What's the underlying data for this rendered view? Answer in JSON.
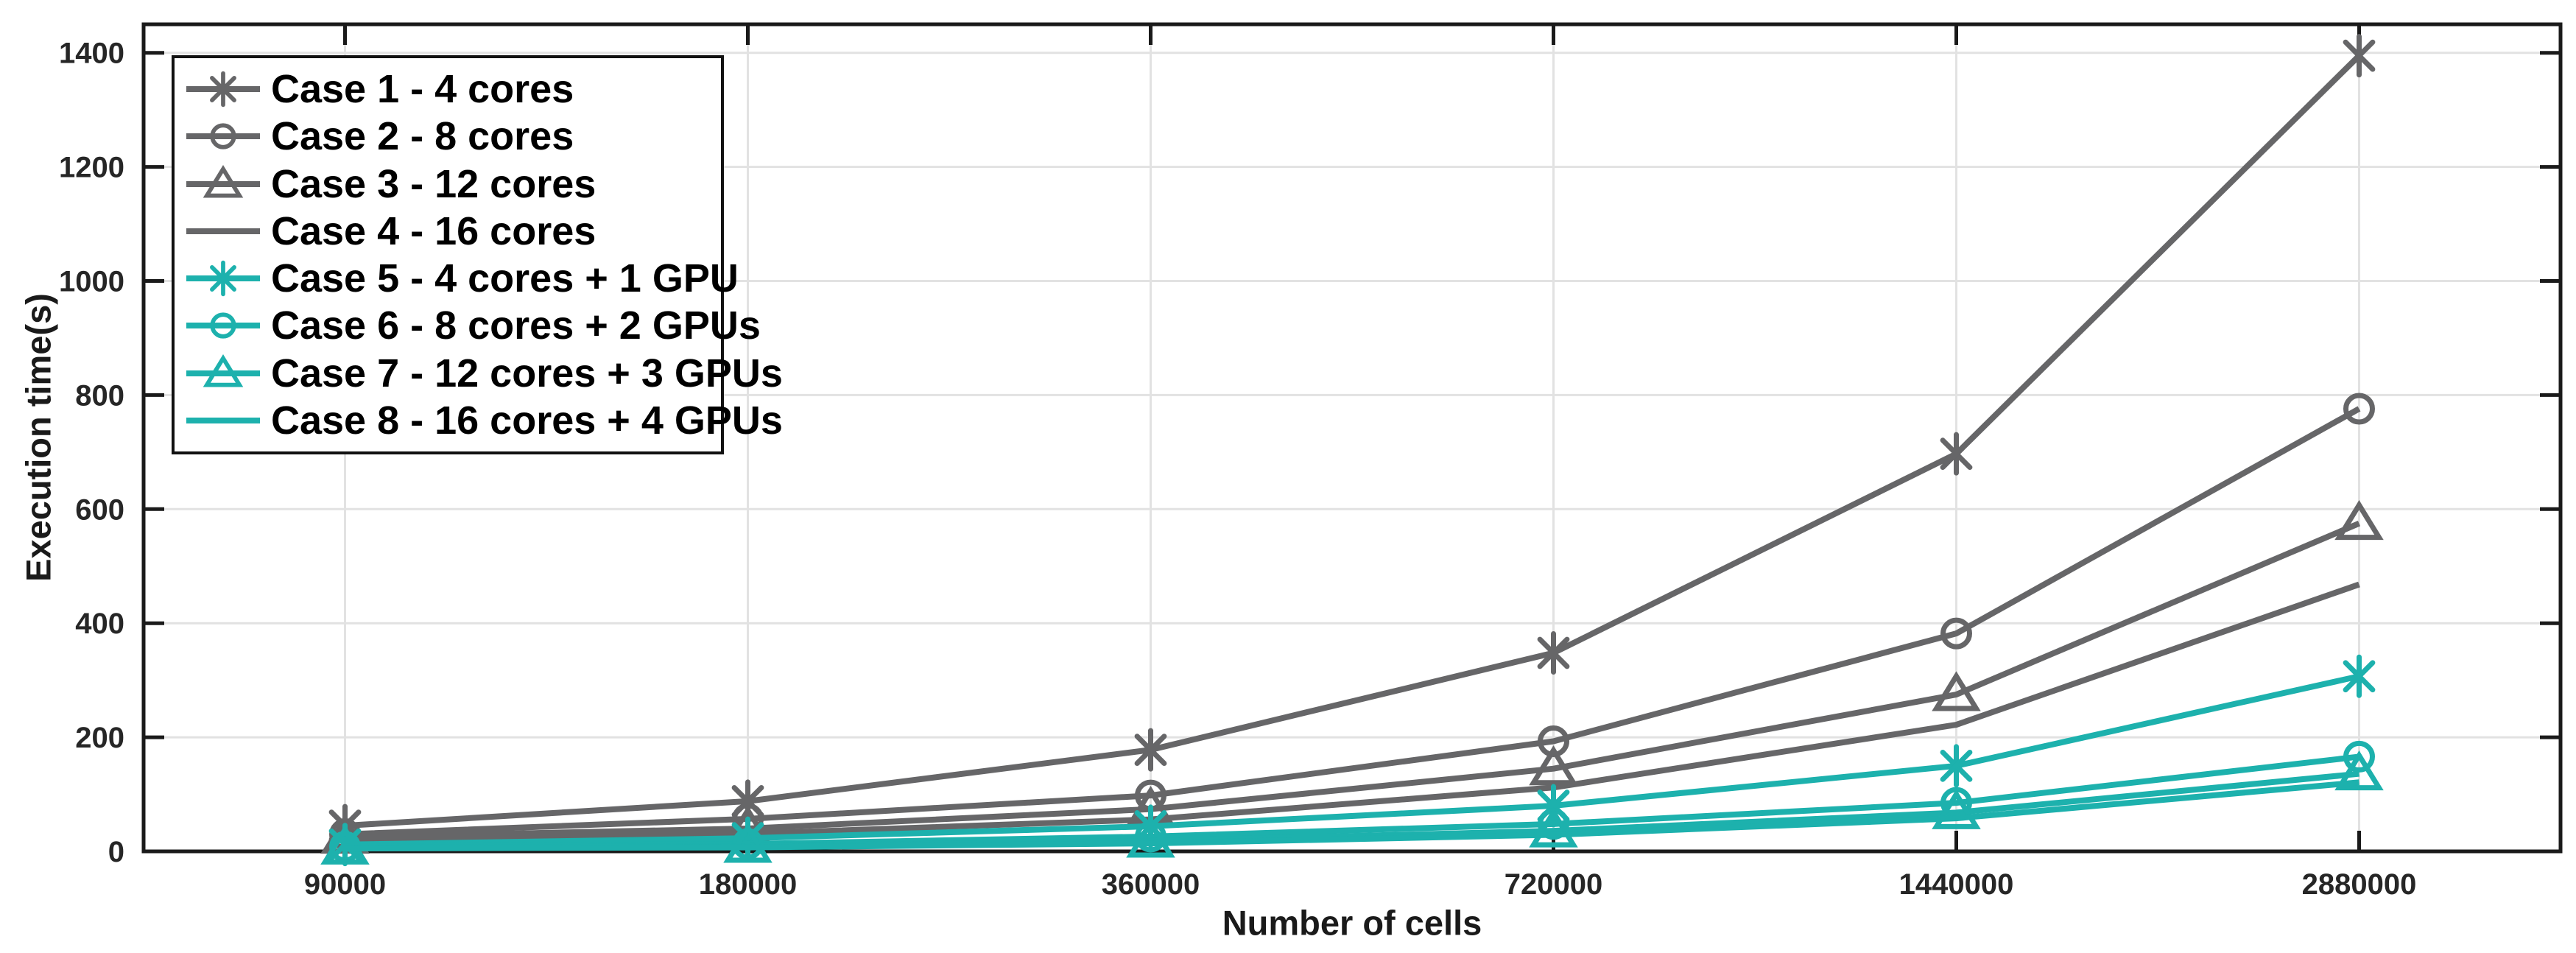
{
  "figure": {
    "background": "#ffffff"
  },
  "colors": {
    "cpu_series": "#666668",
    "gpu_series": "#1db1ad",
    "grid": "#e2e2e2",
    "axis": "#1a1a1a",
    "tick_label": "#262626",
    "legend_border": "#111111",
    "legend_background": "#ffffff"
  },
  "chart_data": {
    "type": "line",
    "title": "",
    "xlabel": "Number of cells",
    "ylabel": "Execution time(s)",
    "categories": [
      "90000",
      "180000",
      "360000",
      "720000",
      "1440000",
      "2880000"
    ],
    "y_ticks": [
      0,
      200,
      400,
      600,
      800,
      1000,
      1200,
      1400
    ],
    "ylim": [
      0,
      1450
    ],
    "grid": true,
    "legend_position": "top-left",
    "series": [
      {
        "name": "Case 1 - 4 cores",
        "color": "#666668",
        "marker": "asterisk",
        "values": [
          45,
          88,
          178,
          348,
          697,
          1395
        ]
      },
      {
        "name": "Case 2 - 8 cores",
        "color": "#666668",
        "marker": "circle",
        "values": [
          30,
          57,
          98,
          193,
          382,
          776
        ]
      },
      {
        "name": "Case 3 - 12 cores",
        "color": "#666668",
        "marker": "triangle",
        "values": [
          25,
          40,
          74,
          145,
          275,
          575
        ]
      },
      {
        "name": "Case 4 - 16 cores",
        "color": "#666668",
        "marker": "none",
        "values": [
          20,
          31,
          56,
          112,
          222,
          468
        ]
      },
      {
        "name": "Case 5 - 4 cores + 1 GPU",
        "color": "#1db1ad",
        "marker": "asterisk",
        "values": [
          12,
          23,
          44,
          80,
          150,
          307
        ]
      },
      {
        "name": "Case 6 - 8 cores + 2 GPUs",
        "color": "#1db1ad",
        "marker": "circle",
        "values": [
          8,
          13,
          26,
          48,
          85,
          166
        ]
      },
      {
        "name": "Case 7 - 12 cores + 3 GPUs",
        "color": "#1db1ad",
        "marker": "triangle",
        "values": [
          6,
          9,
          18,
          36,
          68,
          136
        ]
      },
      {
        "name": "Case 8 - 16 cores + 4 GPUs",
        "color": "#1db1ad",
        "marker": "none",
        "values": [
          5,
          7,
          14,
          29,
          58,
          121
        ]
      }
    ]
  }
}
